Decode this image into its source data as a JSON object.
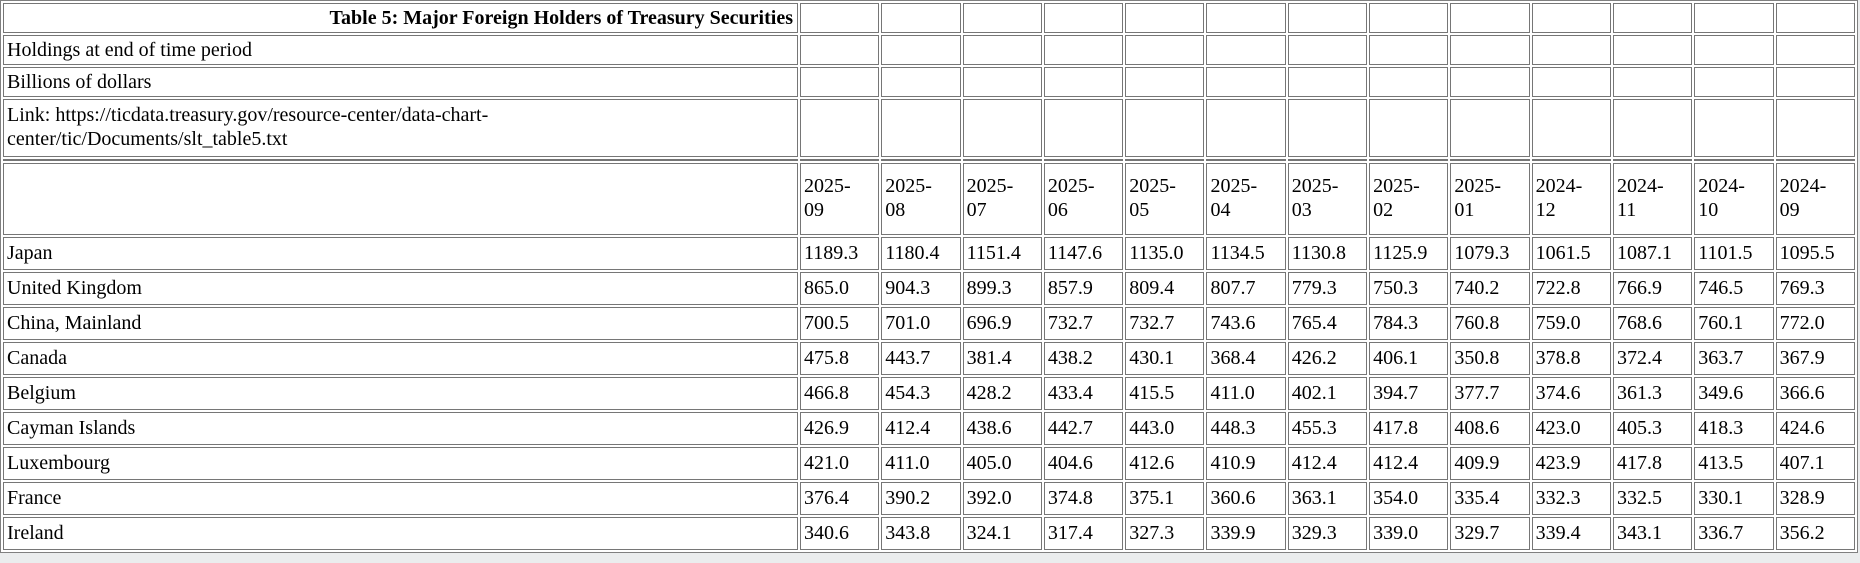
{
  "colors": {
    "page_background": "#ebedee",
    "table_background": "#ffffff",
    "table_border": "#808080",
    "cell_border": "#767676",
    "text": "#000000"
  },
  "table": {
    "link_lines": [
      "Link: https://ticdata.treasury.gov/resource-center/data-chart-",
      "center/tic/Documents/slt_table5.txt"
    ]
  },
  "chart_data": {
    "type": "table",
    "title": "Table 5: Major Foreign Holders of Treasury Securities",
    "note": "Holdings at end of time period",
    "unit": "Billions of dollars",
    "columns": [
      "2025-09",
      "2025-08",
      "2025-07",
      "2025-06",
      "2025-05",
      "2025-04",
      "2025-03",
      "2025-02",
      "2025-01",
      "2024-12",
      "2024-11",
      "2024-10",
      "2024-09"
    ],
    "rows": [
      {
        "label": "Japan",
        "values": [
          "1189.3",
          "1180.4",
          "1151.4",
          "1147.6",
          "1135.0",
          "1134.5",
          "1130.8",
          "1125.9",
          "1079.3",
          "1061.5",
          "1087.1",
          "1101.5",
          "1095.5"
        ]
      },
      {
        "label": "United Kingdom",
        "values": [
          "865.0",
          "904.3",
          "899.3",
          "857.9",
          "809.4",
          "807.7",
          "779.3",
          "750.3",
          "740.2",
          "722.8",
          "766.9",
          "746.5",
          "769.3"
        ]
      },
      {
        "label": "China, Mainland",
        "values": [
          "700.5",
          "701.0",
          "696.9",
          "732.7",
          "732.7",
          "743.6",
          "765.4",
          "784.3",
          "760.8",
          "759.0",
          "768.6",
          "760.1",
          "772.0"
        ]
      },
      {
        "label": "Canada",
        "values": [
          "475.8",
          "443.7",
          "381.4",
          "438.2",
          "430.1",
          "368.4",
          "426.2",
          "406.1",
          "350.8",
          "378.8",
          "372.4",
          "363.7",
          "367.9"
        ]
      },
      {
        "label": "Belgium",
        "values": [
          "466.8",
          "454.3",
          "428.2",
          "433.4",
          "415.5",
          "411.0",
          "402.1",
          "394.7",
          "377.7",
          "374.6",
          "361.3",
          "349.6",
          "366.6"
        ]
      },
      {
        "label": "Cayman Islands",
        "values": [
          "426.9",
          "412.4",
          "438.6",
          "442.7",
          "443.0",
          "448.3",
          "455.3",
          "417.8",
          "408.6",
          "423.0",
          "405.3",
          "418.3",
          "424.6"
        ]
      },
      {
        "label": "Luxembourg",
        "values": [
          "421.0",
          "411.0",
          "405.0",
          "404.6",
          "412.6",
          "410.9",
          "412.4",
          "412.4",
          "409.9",
          "423.9",
          "417.8",
          "413.5",
          "407.1"
        ]
      },
      {
        "label": "France",
        "values": [
          "376.4",
          "390.2",
          "392.0",
          "374.8",
          "375.1",
          "360.6",
          "363.1",
          "354.0",
          "335.4",
          "332.3",
          "332.5",
          "330.1",
          "328.9"
        ]
      },
      {
        "label": "Ireland",
        "values": [
          "340.6",
          "343.8",
          "324.1",
          "317.4",
          "327.3",
          "339.9",
          "329.3",
          "339.0",
          "329.7",
          "339.4",
          "343.1",
          "336.7",
          "356.2"
        ]
      }
    ],
    "layout": {
      "grid": true,
      "legend": "none",
      "header_rows_wrap": true
    }
  }
}
